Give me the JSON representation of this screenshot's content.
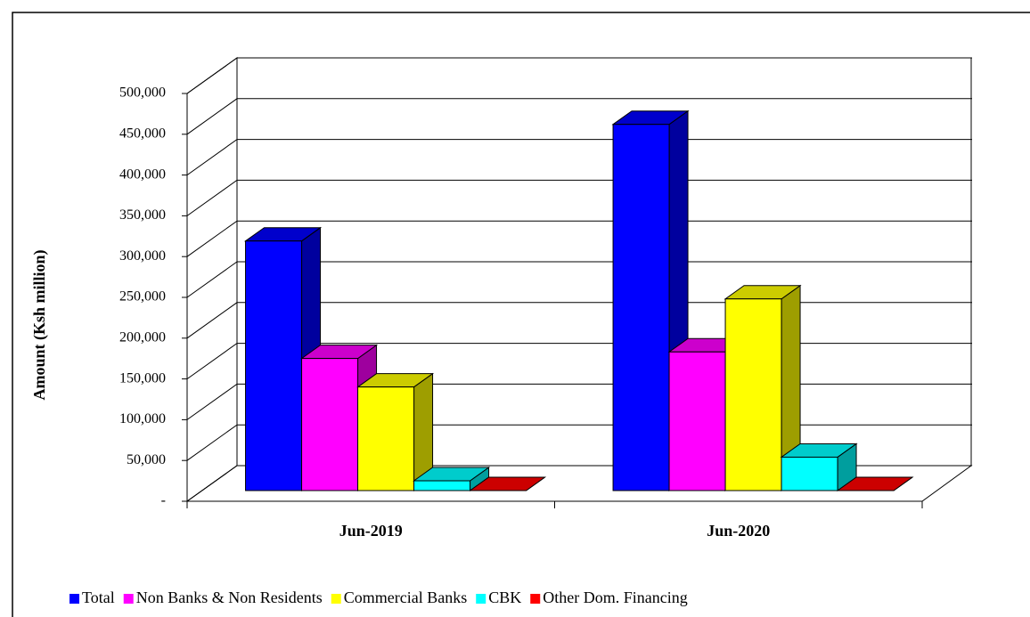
{
  "chart_data": {
    "type": "bar3d",
    "y_axis_label": "Amount  (Ksh million)",
    "categories": [
      "Jun-2019",
      "Jun-2020"
    ],
    "series": [
      {
        "name": "Total",
        "color": "#0000ff",
        "values": [
          306000,
          449000
        ]
      },
      {
        "name": "Non Banks & Non Residents",
        "color": "#ff00ff",
        "values": [
          162000,
          170000
        ]
      },
      {
        "name": "Commercial Banks",
        "color": "#ffff00",
        "values": [
          127000,
          235000
        ]
      },
      {
        "name": "CBK",
        "color": "#00ffff",
        "values": [
          12000,
          41000
        ]
      },
      {
        "name": "Other Dom. Financing",
        "color": "#ff0000",
        "values": [
          0,
          0
        ]
      }
    ],
    "ylim": [
      0,
      500000
    ],
    "yticks": [
      {
        "value": 0,
        "label": "-"
      },
      {
        "value": 50000,
        "label": "50,000"
      },
      {
        "value": 100000,
        "label": "100,000"
      },
      {
        "value": 150000,
        "label": "150,000"
      },
      {
        "value": 200000,
        "label": "200,000"
      },
      {
        "value": 250000,
        "label": "250,000"
      },
      {
        "value": 300000,
        "label": "300,000"
      },
      {
        "value": 350000,
        "label": "350,000"
      },
      {
        "value": 400000,
        "label": "400,000"
      },
      {
        "value": 450000,
        "label": "450,000"
      },
      {
        "value": 500000,
        "label": "500,000"
      }
    ],
    "grid": true,
    "legend": "bottom"
  }
}
